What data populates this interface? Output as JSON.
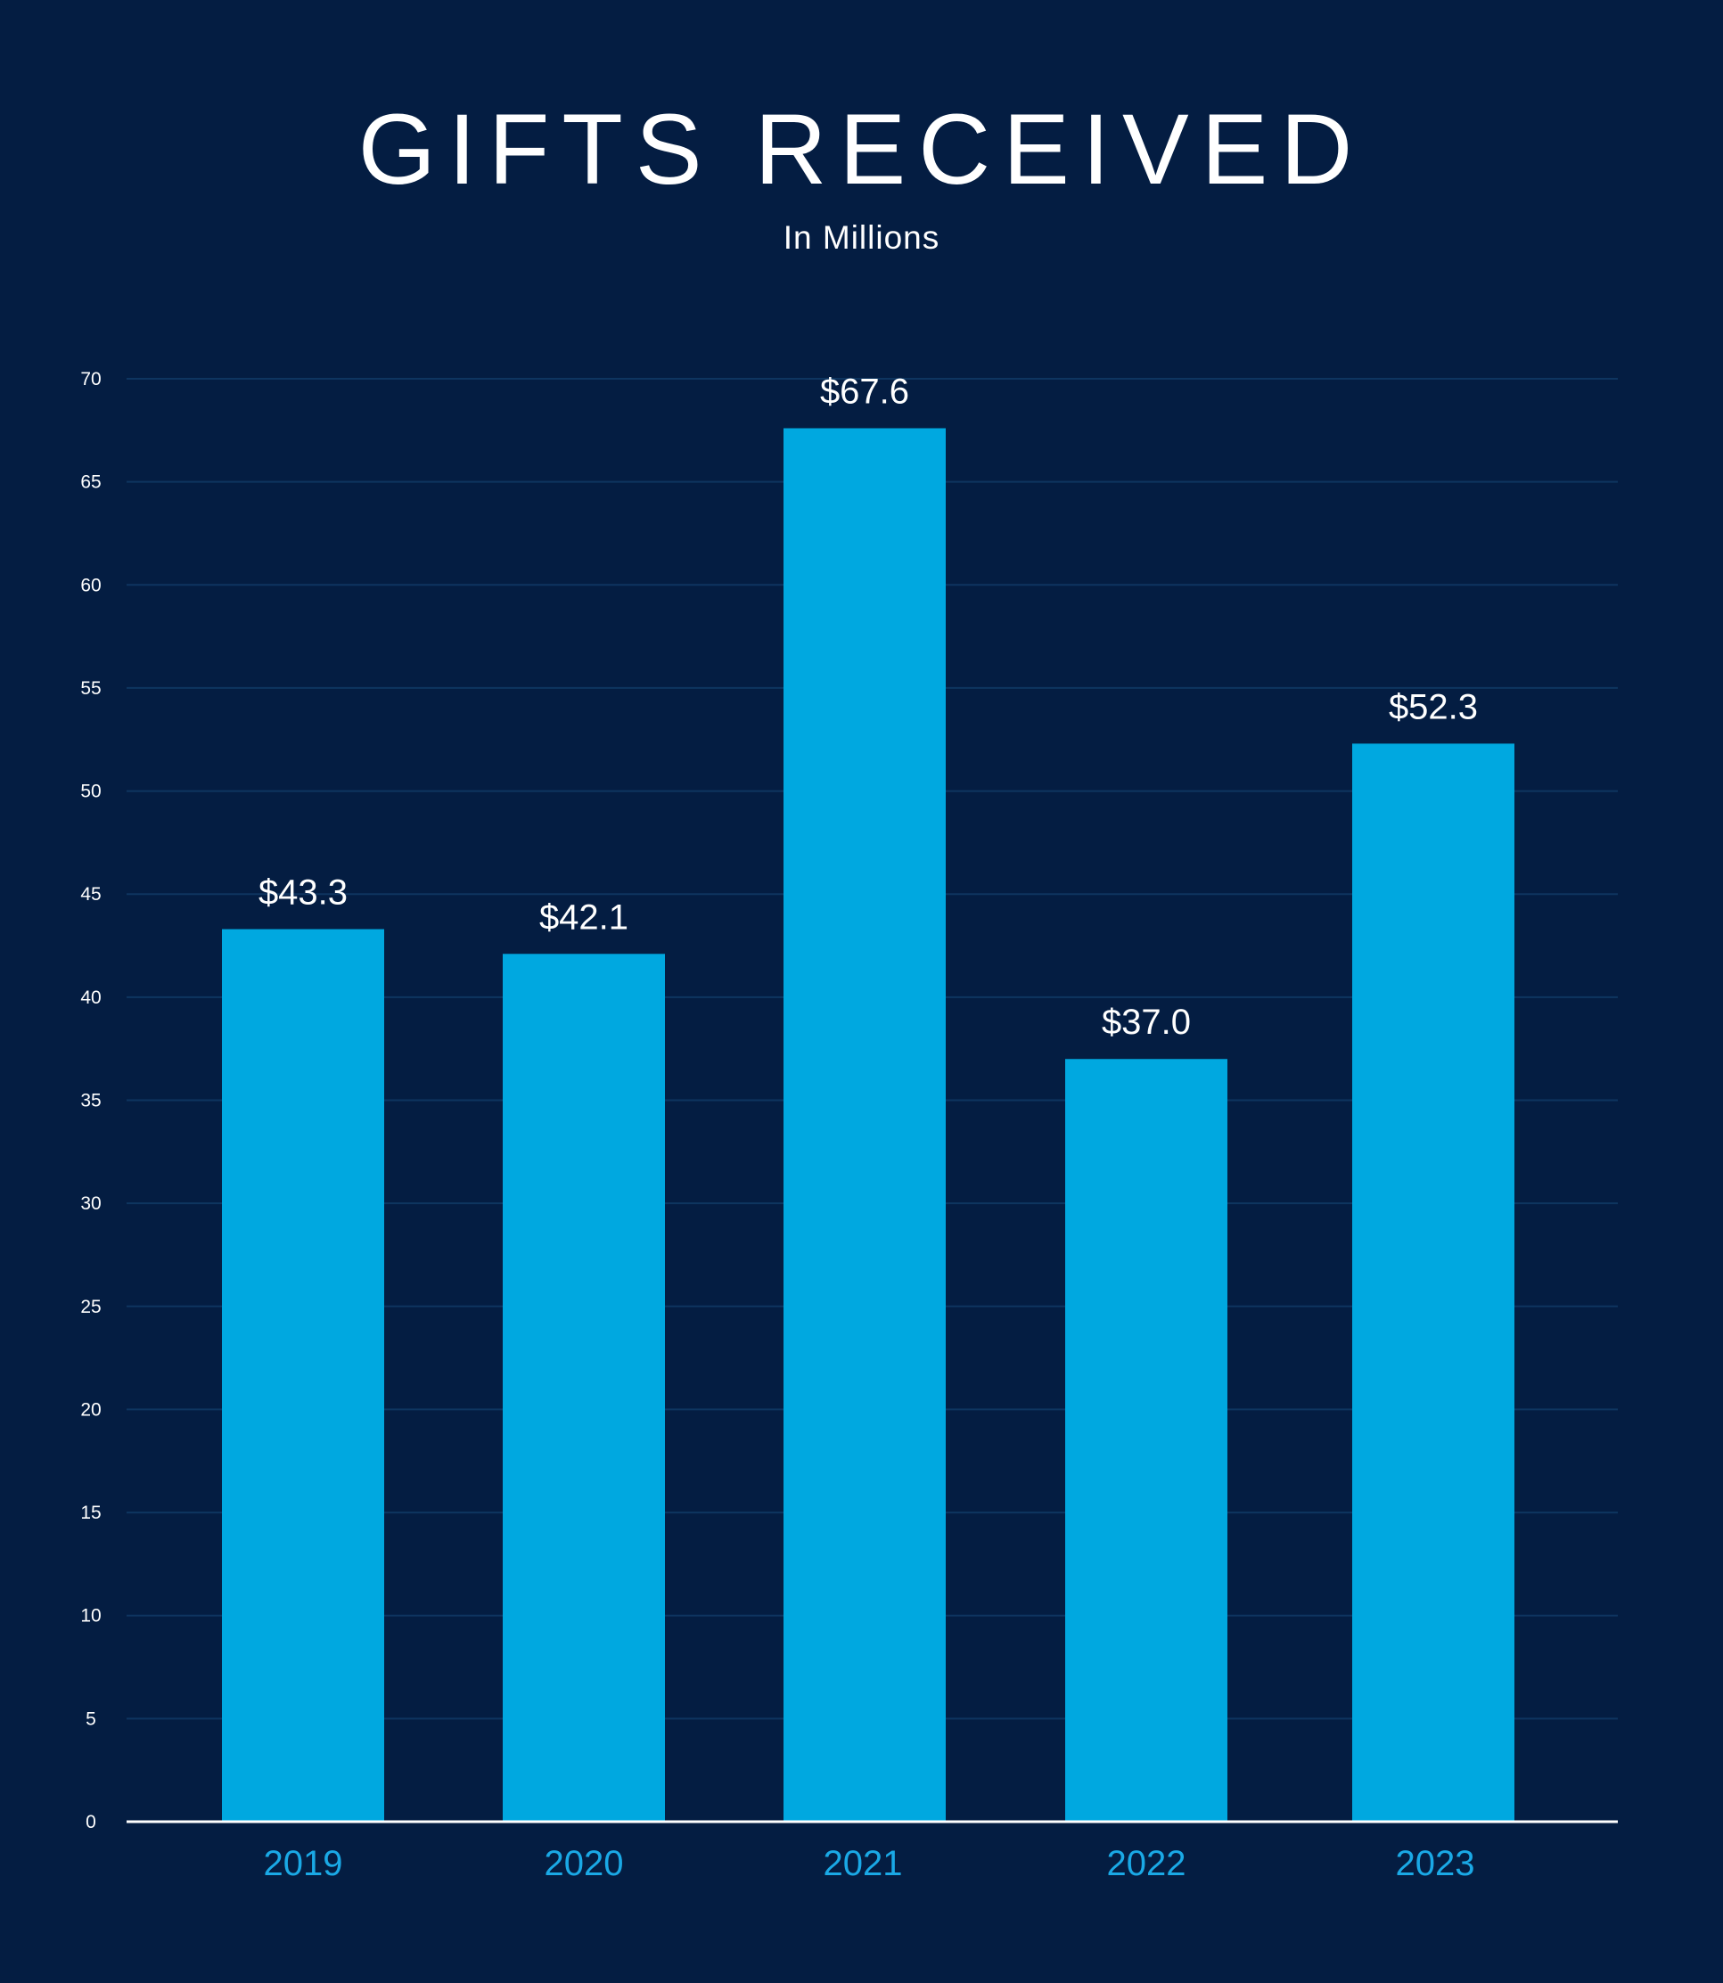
{
  "chart_data": {
    "type": "bar",
    "title": "GIFTS RECEIVED",
    "subtitle": "In Millions",
    "categories": [
      "2019",
      "2020",
      "2021",
      "2022",
      "2023"
    ],
    "values": [
      43.3,
      42.1,
      67.6,
      37.0,
      52.3
    ],
    "value_labels": [
      "$43.3",
      "$42.1",
      "$67.6",
      "$37.0",
      "$52.3"
    ],
    "y_ticks": [
      0,
      5,
      10,
      15,
      20,
      25,
      30,
      35,
      40,
      45,
      50,
      55,
      60,
      65,
      70
    ],
    "ylim": [
      0,
      70
    ],
    "xlabel": "",
    "ylabel": "",
    "grid": true,
    "legend": "none",
    "colors": {
      "background": "#041d42",
      "bar": "#00a8e0",
      "grid": "#0e3560",
      "axis": "#ffffff",
      "category_label": "#1aa9e6",
      "text": "#ffffff"
    }
  }
}
